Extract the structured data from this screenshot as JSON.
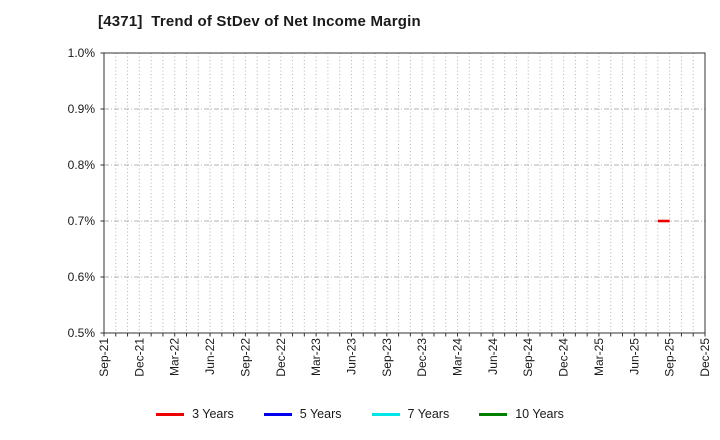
{
  "chart_data": {
    "type": "line",
    "title": "[4371]  Trend of StDev of Net Income Margin",
    "title_color": "#1a1a1a",
    "background": "#ffffff",
    "axis_color": "#333333",
    "tick_label_color": "#1a1a1a",
    "grid": {
      "horizontal_style": "dash-dot",
      "vertical_style": "dotted",
      "color": "#b3b3b3"
    },
    "ylim": [
      0.5,
      1.0
    ],
    "y_tick_values": [
      1.0,
      0.9,
      0.8,
      0.7,
      0.6,
      0.5
    ],
    "y_tick_labels": [
      "1.0%",
      "0.9%",
      "0.8%",
      "0.7%",
      "0.6%",
      "0.5%"
    ],
    "x_axis_unit": "month",
    "total_month_slots": 52,
    "months_between_labels": 3,
    "x_tick_labels": [
      "Sep-21",
      "Dec-21",
      "Mar-22",
      "Jun-22",
      "Sep-22",
      "Dec-22",
      "Mar-23",
      "Jun-23",
      "Sep-23",
      "Dec-23",
      "Mar-24",
      "Jun-24",
      "Sep-24",
      "Dec-24",
      "Mar-25",
      "Jun-25",
      "Sep-25",
      "Dec-25"
    ],
    "series": [
      {
        "name": "3 Years",
        "color": "#ee0000",
        "points": [
          {
            "label": "Aug-25",
            "month_index": 47,
            "value_pct": 0.7
          },
          {
            "label": "Sep-25",
            "month_index": 48,
            "value_pct": 0.7
          }
        ]
      },
      {
        "name": "5 Years",
        "color": "#0000ee",
        "points": []
      },
      {
        "name": "7 Years",
        "color": "#00e5e5",
        "points": []
      },
      {
        "name": "10 Years",
        "color": "#008000",
        "points": []
      }
    ],
    "legend_position": "bottom-center"
  }
}
